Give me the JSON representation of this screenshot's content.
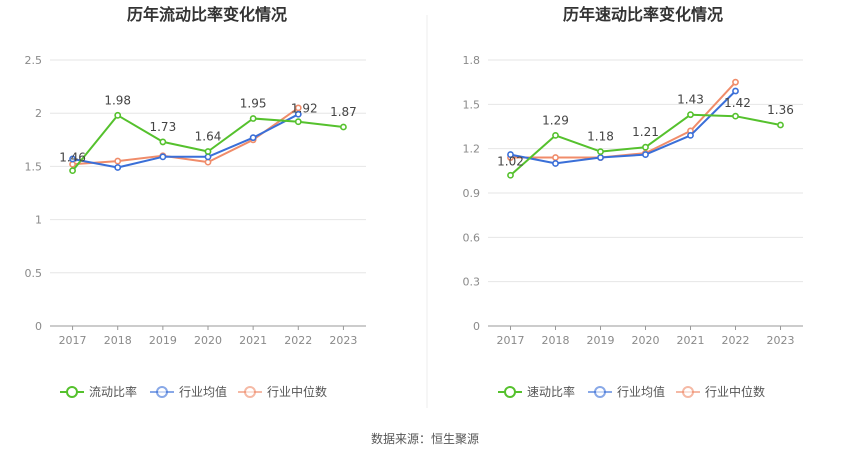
{
  "source_label": "数据来源：恒生聚源",
  "colors": {
    "primary": "#55c12d",
    "avg": "#3a6fd8",
    "median": "#f08c6a",
    "grid": "#e6e6e6",
    "axis": "#999999"
  },
  "chart_data": [
    {
      "type": "line",
      "title": "历年流动比率变化情况",
      "categories": [
        "2017",
        "2018",
        "2019",
        "2020",
        "2021",
        "2022",
        "2023"
      ],
      "ylim": [
        0,
        2.5
      ],
      "yticks": [
        "0",
        "0.5",
        "1",
        "1.5",
        "2",
        "2.5"
      ],
      "grid": true,
      "legend_position": "bottom",
      "series": [
        {
          "name": "流动比率",
          "values": [
            1.46,
            1.98,
            1.73,
            1.64,
            1.95,
            1.92,
            1.87
          ],
          "labels": [
            "1.46",
            "1.98",
            "1.73",
            "1.64",
            "1.95",
            "1.92",
            "1.87"
          ]
        },
        {
          "name": "行业均值",
          "values": [
            1.57,
            1.49,
            1.59,
            1.59,
            1.77,
            1.99,
            null
          ]
        },
        {
          "name": "行业中位数",
          "values": [
            1.52,
            1.55,
            1.6,
            1.54,
            1.75,
            2.05,
            null
          ]
        }
      ]
    },
    {
      "type": "line",
      "title": "历年速动比率变化情况",
      "categories": [
        "2017",
        "2018",
        "2019",
        "2020",
        "2021",
        "2022",
        "2023"
      ],
      "ylim": [
        0,
        1.8
      ],
      "yticks": [
        "0",
        "0.3",
        "0.6",
        "0.9",
        "1.2",
        "1.5",
        "1.8"
      ],
      "grid": true,
      "legend_position": "bottom",
      "series": [
        {
          "name": "速动比率",
          "values": [
            1.02,
            1.29,
            1.18,
            1.21,
            1.43,
            1.42,
            1.36
          ],
          "labels": [
            "1.02",
            "1.29",
            "1.18",
            "1.21",
            "1.43",
            "1.42",
            "1.36"
          ]
        },
        {
          "name": "行业均值",
          "values": [
            1.16,
            1.1,
            1.14,
            1.16,
            1.29,
            1.59,
            null
          ]
        },
        {
          "name": "行业中位数",
          "values": [
            1.14,
            1.14,
            1.14,
            1.17,
            1.32,
            1.65,
            null
          ]
        }
      ]
    }
  ]
}
